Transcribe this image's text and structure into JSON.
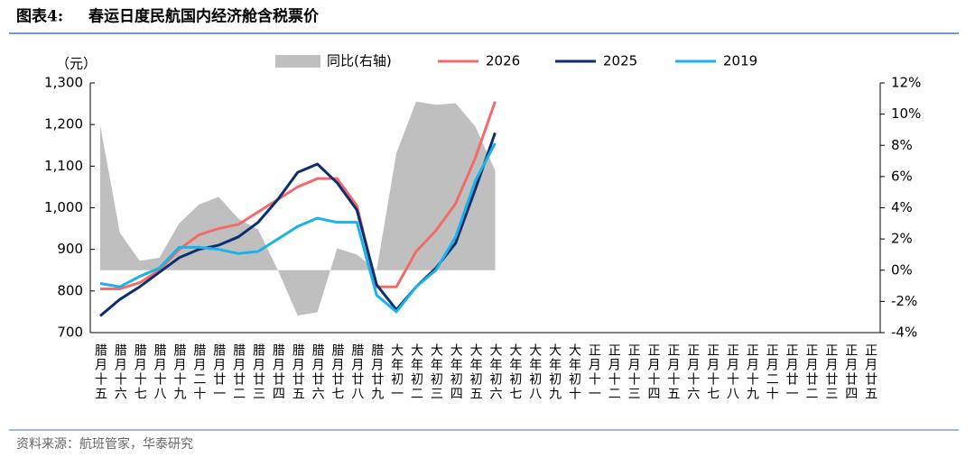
{
  "chart_data": {
    "type": "line",
    "title_label": "图表4:",
    "title": "春运日度民航国内经济舱含税票价",
    "y_label": "（元）",
    "source": "资料来源：航班管家，华泰研究",
    "categories": [
      "腊月十五",
      "腊月十六",
      "腊月十七",
      "腊月十八",
      "腊月十九",
      "腊月二十",
      "腊月廿一",
      "腊月廿二",
      "腊月廿三",
      "腊月廿四",
      "腊月廿五",
      "腊月廿六",
      "腊月廿七",
      "腊月廿八",
      "腊月廿九",
      "大年初一",
      "大年初二",
      "大年初三",
      "大年初四",
      "大年初五",
      "大年初六",
      "大年初七",
      "大年初八",
      "大年初九",
      "大年初十",
      "正月十一",
      "正月十二",
      "正月十三",
      "正月十四",
      "正月十五",
      "正月十六",
      "正月十七",
      "正月十八",
      "正月十九",
      "正月二十",
      "正月廿一",
      "正月廿二",
      "正月廿三",
      "正月廿四",
      "正月廿五"
    ],
    "series": [
      {
        "name": "同比(右轴)",
        "type": "area",
        "axis": "y2",
        "color": "#bfbfbf",
        "values": [
          9.3,
          2.4,
          0.6,
          0.8,
          3.0,
          4.2,
          4.7,
          3.3,
          2.6,
          0,
          -2.9,
          -2.7,
          1.4,
          1.0,
          0,
          7.5,
          10.8,
          10.6,
          10.7,
          9.2,
          6.4,
          null,
          null,
          null,
          null,
          null,
          null,
          null,
          null,
          null,
          null,
          null,
          null,
          null,
          null,
          null,
          null,
          null,
          null,
          null
        ]
      },
      {
        "name": "2026",
        "color": "#f26b6b",
        "values": [
          805,
          805,
          820,
          850,
          900,
          935,
          950,
          960,
          990,
          1020,
          1050,
          1070,
          1070,
          1005,
          810,
          810,
          895,
          945,
          1010,
          1120,
          1255,
          null,
          null,
          null,
          null,
          null,
          null,
          null,
          null,
          null,
          null,
          null,
          null,
          null,
          null,
          null,
          null,
          null,
          null,
          null
        ]
      },
      {
        "name": "2025",
        "color": "#0b2f6e",
        "values": [
          740,
          780,
          810,
          845,
          880,
          900,
          910,
          930,
          965,
          1020,
          1085,
          1105,
          1060,
          995,
          815,
          755,
          810,
          855,
          915,
          1045,
          1180,
          null,
          null,
          null,
          null,
          null,
          null,
          null,
          null,
          null,
          null,
          null,
          null,
          null,
          null,
          null,
          null,
          null,
          null,
          null
        ]
      },
      {
        "name": "2019",
        "color": "#1ab2e8",
        "values": [
          818,
          810,
          835,
          855,
          905,
          905,
          900,
          890,
          895,
          925,
          955,
          975,
          965,
          965,
          790,
          750,
          810,
          850,
          930,
          1065,
          1155,
          null,
          null,
          null,
          null,
          null,
          null,
          null,
          null,
          null,
          null,
          null,
          null,
          null,
          null,
          null,
          null,
          null,
          null,
          null
        ]
      }
    ],
    "ylim": [
      700,
      1300
    ],
    "yticks": [
      700,
      800,
      900,
      {
        "value": 1000,
        "label": "1,000"
      },
      {
        "value": 1100,
        "label": "1,100"
      },
      {
        "value": 1200,
        "label": "1,200"
      },
      {
        "value": 1300,
        "label": "1,300"
      }
    ],
    "y2lim": [
      -4,
      12
    ],
    "y2ticks": [
      {
        "value": -4,
        "label": "-4%"
      },
      {
        "value": -2,
        "label": "-2%"
      },
      {
        "value": 0,
        "label": "0%"
      },
      {
        "value": 2,
        "label": "2%"
      },
      {
        "value": 4,
        "label": "4%"
      },
      {
        "value": 6,
        "label": "6%"
      },
      {
        "value": 8,
        "label": "8%"
      },
      {
        "value": 10,
        "label": "10%"
      },
      {
        "value": 12,
        "label": "12%"
      }
    ],
    "grid": false,
    "legend": "top"
  }
}
